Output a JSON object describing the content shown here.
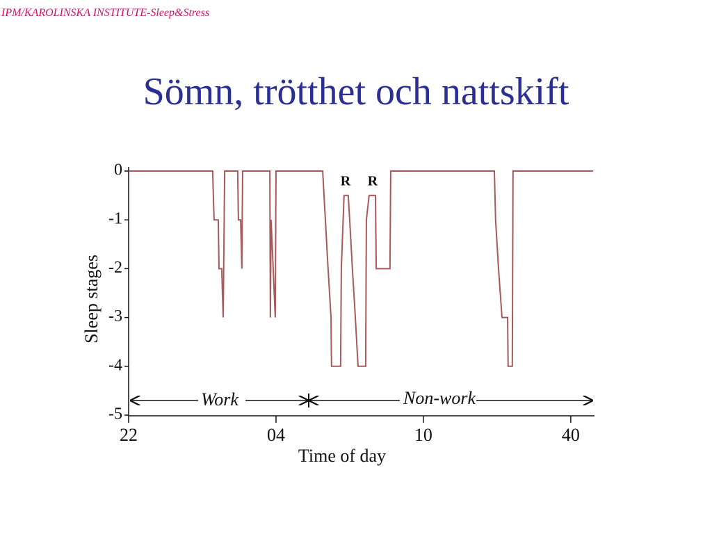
{
  "header": "IPM/KAROLINSKA INSTITUTE-Sleep&Stress",
  "title": "Sömn, trötthet och nattskift",
  "chart_data": {
    "type": "line",
    "x_label": "Time of day",
    "y_label": "Sleep stages",
    "x": [
      22,
      25.42,
      25.48,
      25.65,
      25.68,
      25.79,
      25.85,
      25.91,
      26.44,
      26.47,
      26.56,
      26.61,
      26.64,
      27.75,
      27.77,
      27.8,
      27.97,
      28.0,
      29.9,
      30.01,
      30.12,
      30.24,
      30.26,
      30.63,
      30.66,
      30.77,
      30.94,
      31.0,
      31.11,
      31.23,
      31.34,
      31.65,
      31.68,
      31.79,
      32.05,
      32.08,
      32.64,
      32.67,
      36.89,
      36.94,
      37.06,
      37.2,
      37.43,
      37.45,
      37.62,
      37.65,
      40.91
    ],
    "series": [
      {
        "color": "#a85a5a",
        "values": [
          0,
          0,
          -1,
          -1,
          -2,
          -2,
          -3,
          0,
          0,
          -1,
          -1,
          -2,
          0,
          0,
          -3,
          -1,
          -3,
          0,
          0,
          -1,
          -2,
          -3,
          -4,
          -4,
          -2,
          -0.5,
          -0.5,
          -1,
          -2,
          -3,
          -4,
          -4,
          -1,
          -0.5,
          -0.5,
          -2,
          -2,
          0,
          0,
          -1,
          -2,
          -3,
          -3,
          -4,
          -4,
          0,
          0
        ]
      }
    ],
    "xlim": [
      22,
      40.91
    ],
    "ylim": [
      -5,
      0
    ],
    "xticks": [
      22,
      {
        "value": 28,
        "label": "04"
      },
      {
        "value": 34,
        "label": "10"
      },
      40
    ],
    "yticks": [
      0,
      -1,
      -2,
      -3,
      -4,
      -5
    ],
    "annotations": [
      "R",
      "R",
      "Work",
      "Non-work"
    ]
  }
}
